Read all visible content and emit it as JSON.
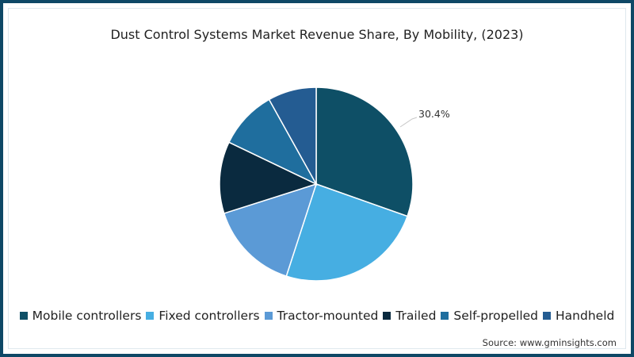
{
  "chart_data": {
    "type": "pie",
    "title": "Dust Control Systems Market Revenue Share, By Mobility, (2023)",
    "categories": [
      "Mobile controllers",
      "Fixed controllers",
      "Tractor-mounted",
      "Trailed",
      "Self-propelled",
      "Handheld"
    ],
    "values": [
      30.4,
      24.6,
      15.1,
      12.0,
      9.8,
      8.1
    ],
    "colors": [
      "#0e4f66",
      "#46aee2",
      "#5b9ad6",
      "#0a2a3f",
      "#1f6e9e",
      "#245c92"
    ],
    "data_labels": [
      {
        "category": "Mobile controllers",
        "text": "30.4%"
      }
    ],
    "legend_position": "bottom",
    "start_angle": "12 o'clock, clockwise"
  },
  "title": "Dust Control Systems Market Revenue Share, By Mobility, (2023)",
  "label_mobile": "30.4%",
  "legend": [
    {
      "label": "Mobile controllers",
      "color": "#0e4f66"
    },
    {
      "label": "Fixed controllers",
      "color": "#46aee2"
    },
    {
      "label": "Tractor-mounted",
      "color": "#5b9ad6"
    },
    {
      "label": "Trailed",
      "color": "#0a2a3f"
    },
    {
      "label": "Self-propelled",
      "color": "#1f6e9e"
    },
    {
      "label": "Handheld",
      "color": "#245c92"
    }
  ],
  "source": "Source: www.gminsights.com"
}
